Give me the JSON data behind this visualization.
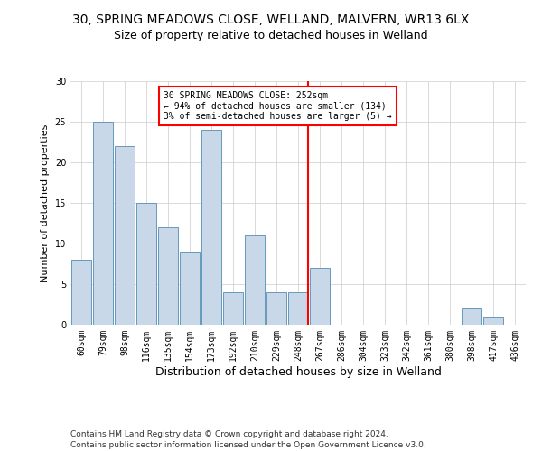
{
  "title1": "30, SPRING MEADOWS CLOSE, WELLAND, MALVERN, WR13 6LX",
  "title2": "Size of property relative to detached houses in Welland",
  "xlabel": "Distribution of detached houses by size in Welland",
  "ylabel": "Number of detached properties",
  "categories": [
    "60sqm",
    "79sqm",
    "98sqm",
    "116sqm",
    "135sqm",
    "154sqm",
    "173sqm",
    "192sqm",
    "210sqm",
    "229sqm",
    "248sqm",
    "267sqm",
    "286sqm",
    "304sqm",
    "323sqm",
    "342sqm",
    "361sqm",
    "380sqm",
    "398sqm",
    "417sqm",
    "436sqm"
  ],
  "values": [
    8,
    25,
    22,
    15,
    12,
    9,
    24,
    4,
    11,
    4,
    4,
    7,
    0,
    0,
    0,
    0,
    0,
    0,
    2,
    1,
    0
  ],
  "bar_color": "#c8d8e8",
  "bar_edgecolor": "#6699bb",
  "grid_color": "#cccccc",
  "vline_color": "red",
  "annotation_text": "30 SPRING MEADOWS CLOSE: 252sqm\n← 94% of detached houses are smaller (134)\n3% of semi-detached houses are larger (5) →",
  "annotation_box_edgecolor": "red",
  "footnote1": "Contains HM Land Registry data © Crown copyright and database right 2024.",
  "footnote2": "Contains public sector information licensed under the Open Government Licence v3.0.",
  "ylim": [
    0,
    30
  ],
  "yticks": [
    0,
    5,
    10,
    15,
    20,
    25,
    30
  ],
  "background_color": "#ffffff",
  "title1_fontsize": 10,
  "title2_fontsize": 9,
  "ylabel_fontsize": 8,
  "xlabel_fontsize": 9,
  "tick_fontsize": 7,
  "annotation_fontsize": 7,
  "footnote_fontsize": 6.5
}
